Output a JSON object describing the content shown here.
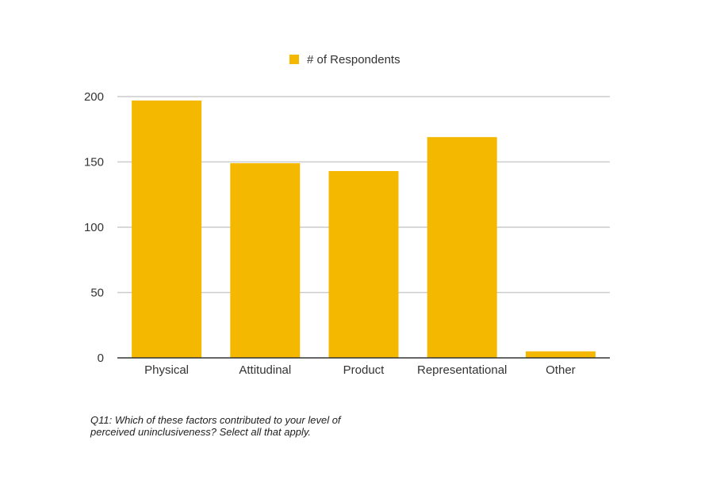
{
  "chart_data": {
    "type": "bar",
    "categories": [
      "Physical",
      "Attitudinal",
      "Product",
      "Representational",
      "Other"
    ],
    "series": [
      {
        "name": "# of Respondents",
        "values": [
          197,
          149,
          143,
          169,
          5
        ],
        "color": "#F5B800"
      }
    ],
    "ylim": [
      0,
      200
    ],
    "yticks": [
      0,
      50,
      100,
      150,
      200
    ],
    "grid": true,
    "legend_position": "top-center"
  },
  "caption": {
    "line1": "Q11: Which of these factors contributed to your level of",
    "line2": "perceived uninclusiveness? Select all that apply."
  },
  "colors": {
    "bar": "#F5B800",
    "grid": "#cccccc",
    "axis": "#333333",
    "text": "#333333"
  }
}
